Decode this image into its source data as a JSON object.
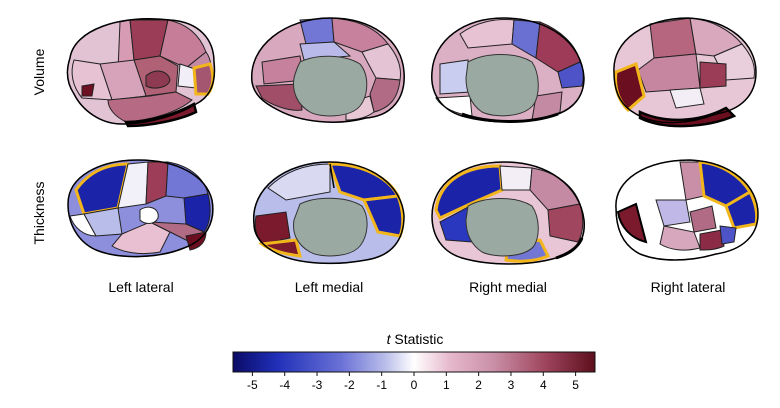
{
  "rows": [
    {
      "label": "Volume"
    },
    {
      "label": "Thickness"
    }
  ],
  "views": [
    {
      "label": "Left lateral"
    },
    {
      "label": "Left medial"
    },
    {
      "label": "Right medial"
    },
    {
      "label": "Right lateral"
    }
  ],
  "colorbar": {
    "title_italic": "t",
    "title_rest": " Statistic",
    "ticks": [
      "-5",
      "-4",
      "-3",
      "-2",
      "-1",
      "0",
      "1",
      "2",
      "3",
      "4",
      "5"
    ],
    "min": -5.6,
    "max": 5.6,
    "stops": [
      "#0b0b66",
      "#1f2fb8",
      "#6b72d6",
      "#b9bdea",
      "#ffffff",
      "#e6b8cc",
      "#c98fa6",
      "#a0465f",
      "#5c0f1c"
    ]
  },
  "colors": {
    "highlight_outline": "#f2b61b",
    "medial_wall": "#9aaaa2",
    "region_outline": "#222222"
  }
}
